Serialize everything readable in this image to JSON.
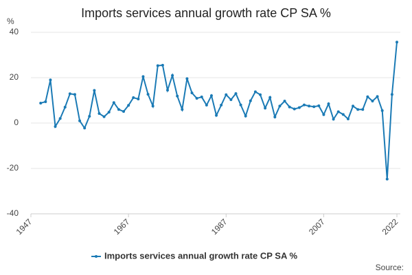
{
  "chart_data": {
    "type": "line",
    "title": "Imports services annual growth rate CP SA %",
    "y_label": "%",
    "source": "Source:",
    "x": [
      1949,
      1950,
      1951,
      1952,
      1953,
      1954,
      1955,
      1956,
      1957,
      1958,
      1959,
      1960,
      1961,
      1962,
      1963,
      1964,
      1965,
      1966,
      1967,
      1968,
      1969,
      1970,
      1971,
      1972,
      1973,
      1974,
      1975,
      1976,
      1977,
      1978,
      1979,
      1980,
      1981,
      1982,
      1983,
      1984,
      1985,
      1986,
      1987,
      1988,
      1989,
      1990,
      1991,
      1992,
      1993,
      1994,
      1995,
      1996,
      1997,
      1998,
      1999,
      2000,
      2001,
      2002,
      2003,
      2004,
      2005,
      2006,
      2007,
      2008,
      2009,
      2010,
      2011,
      2012,
      2013,
      2014,
      2015,
      2016,
      2017,
      2018,
      2019,
      2020,
      2021,
      2022
    ],
    "series": [
      {
        "name": "Imports services annual growth rate CP SA %",
        "color": "#1a7ab5",
        "values": [
          8.8,
          9.4,
          19,
          -1.5,
          2,
          7,
          12.9,
          12.6,
          1,
          -2.2,
          3,
          14.4,
          4.2,
          2.8,
          4.8,
          9,
          6,
          5.1,
          7.8,
          11.2,
          10.6,
          20.5,
          12.7,
          7.5,
          25.3,
          25.5,
          14.5,
          21,
          11.9,
          6,
          19.6,
          13.3,
          10.9,
          11.5,
          7.9,
          12.1,
          3.4,
          7.9,
          12.5,
          10.3,
          13,
          8,
          3.1,
          9.8,
          13.8,
          12.5,
          6.6,
          11.3,
          2.7,
          7.5,
          9.7,
          7.1,
          6.2,
          6.8,
          8,
          7.5,
          7.2,
          7.6,
          3.7,
          8.5,
          1.7,
          5,
          3.8,
          1.8,
          7.5,
          6,
          6,
          11.6,
          9.7,
          11.7,
          5.5,
          -24.7,
          12.6,
          35.7
        ]
      }
    ],
    "xlim": [
      1947,
      2022
    ],
    "xticks": [
      1947,
      1967,
      1987,
      2007,
      2022
    ],
    "ylim": [
      -40,
      40
    ],
    "yticks": [
      -40,
      -20,
      0,
      20,
      40
    ],
    "grid": true
  }
}
